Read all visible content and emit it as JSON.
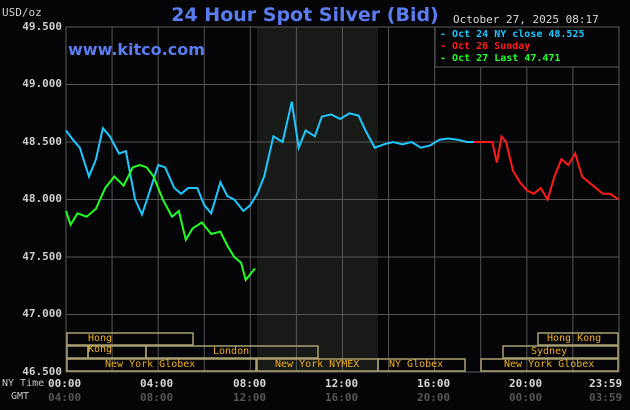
{
  "header": {
    "title": "24 Hour Spot Silver (Bid)",
    "unit": "USD/oz",
    "timestamp": "October 27, 2025 08:17",
    "site": "www.kitco.com"
  },
  "legend": [
    {
      "label": "Oct 24 NY close 48.525",
      "color": "#1ec8ff"
    },
    {
      "label": "Oct 26 Sunday",
      "color": "#ff1a1a"
    },
    {
      "label": "Oct 27 Last 47.471",
      "color": "#22ff22"
    }
  ],
  "axis": {
    "y_ticks": [
      "49.500",
      "49.000",
      "48.500",
      "48.000",
      "47.500",
      "47.000",
      "46.500"
    ],
    "x_row_labels": {
      "ny": "NY Time",
      "gmt": "GMT"
    },
    "x_ny": [
      "00:00",
      "04:00",
      "08:00",
      "12:00",
      "16:00",
      "20:00",
      "23:59"
    ],
    "x_gmt": [
      "04:00",
      "08:00",
      "12:00",
      "16:00",
      "20:00",
      "00:00",
      "03:59"
    ]
  },
  "sessions": {
    "hong_kong_1": "Hong Kong",
    "london": "London",
    "ny_globex_1": "New York Globex",
    "ny_nymex": "New York NYMEX",
    "ny_globex_2": "NY Globex",
    "hong_kong_2": "Hong Kong",
    "sydney": "Sydney",
    "ny_globex_3": "New York Globex"
  },
  "colors": {
    "title": "#5a7cf0",
    "oct24": "#1ec8ff",
    "oct26": "#ff1a1a",
    "oct27": "#22ff22",
    "session_text": "#f0b020",
    "session_border": "#a8a070",
    "grid": "#555555",
    "shade": "#181a17"
  },
  "chart_data": {
    "type": "line",
    "title": "24 Hour Spot Silver (Bid)",
    "xlabel": "NY Time (hours)",
    "ylabel": "USD/oz",
    "ylim": [
      46.5,
      49.5
    ],
    "xlim": [
      0,
      24
    ],
    "grid": true,
    "legend_position": "top-right",
    "series": [
      {
        "name": "Oct 24 NY close 48.525",
        "x": [
          0,
          0.3,
          0.6,
          1.0,
          1.3,
          1.6,
          1.9,
          2.3,
          2.6,
          3.0,
          3.3,
          3.6,
          4.0,
          4.3,
          4.7,
          5.0,
          5.3,
          5.7,
          6.0,
          6.3,
          6.7,
          7.0,
          7.3,
          7.7,
          8.0,
          8.3,
          8.6,
          9.0,
          9.4,
          9.8,
          10.1,
          10.4,
          10.8,
          11.1,
          11.5,
          11.9,
          12.3,
          12.7,
          13.0,
          13.4,
          13.8,
          14.2,
          14.6,
          15.0,
          15.4,
          15.8,
          16.2,
          16.6,
          17.0,
          17.4,
          17.7
        ],
        "y": [
          48.6,
          48.52,
          48.45,
          48.2,
          48.35,
          48.62,
          48.55,
          48.4,
          48.42,
          48.0,
          47.87,
          48.05,
          48.3,
          48.28,
          48.1,
          48.05,
          48.1,
          48.1,
          47.95,
          47.88,
          48.15,
          48.03,
          48.0,
          47.9,
          47.95,
          48.05,
          48.2,
          48.55,
          48.5,
          48.85,
          48.45,
          48.6,
          48.55,
          48.72,
          48.74,
          48.7,
          48.75,
          48.73,
          48.6,
          48.45,
          48.48,
          48.5,
          48.48,
          48.5,
          48.45,
          48.47,
          48.52,
          48.53,
          48.52,
          48.5,
          48.5
        ]
      },
      {
        "name": "Oct 26 Sunday",
        "x": [
          17.7,
          18.5,
          18.7,
          18.9,
          19.1,
          19.4,
          19.7,
          20.0,
          20.3,
          20.6,
          20.9,
          21.2,
          21.5,
          21.8,
          22.1,
          22.4,
          22.7,
          23.0,
          23.3,
          23.6,
          23.99
        ],
        "y": [
          48.5,
          48.5,
          48.32,
          48.55,
          48.5,
          48.25,
          48.15,
          48.08,
          48.05,
          48.1,
          48.0,
          48.2,
          48.35,
          48.3,
          48.4,
          48.2,
          48.15,
          48.1,
          48.05,
          48.05,
          48.0
        ]
      },
      {
        "name": "Oct 27 Last 47.471",
        "x": [
          0,
          0.2,
          0.5,
          0.9,
          1.3,
          1.7,
          2.1,
          2.5,
          2.9,
          3.2,
          3.5,
          3.8,
          4.2,
          4.6,
          4.9,
          5.2,
          5.5,
          5.9,
          6.3,
          6.7,
          7.0,
          7.3,
          7.6,
          7.8,
          8.0,
          8.2
        ],
        "y": [
          47.9,
          47.78,
          47.88,
          47.85,
          47.92,
          48.1,
          48.2,
          48.12,
          48.28,
          48.3,
          48.28,
          48.2,
          48.0,
          47.85,
          47.9,
          47.65,
          47.75,
          47.8,
          47.7,
          47.72,
          47.6,
          47.5,
          47.45,
          47.3,
          47.35,
          47.4
        ]
      }
    ]
  }
}
